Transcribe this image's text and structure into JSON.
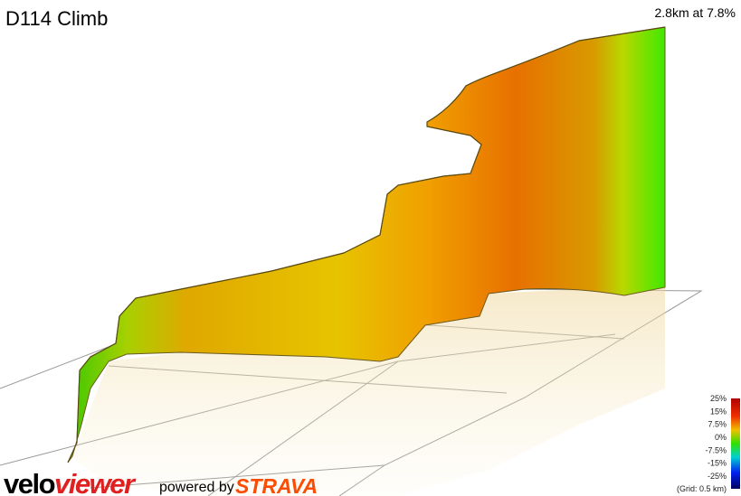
{
  "header": {
    "title": "D114 Climb",
    "summary": "2.8km at 7.8%"
  },
  "legend": {
    "labels": [
      "25%",
      "15%",
      "7.5%",
      "0%",
      "-7.5%",
      "-15%",
      "-25%"
    ],
    "note": "(Grid: 0.5 km)"
  },
  "footer": {
    "logo_part1": "velo",
    "logo_part2": "viewer",
    "powered_by": "powered by",
    "brand": "STRAVA"
  }
}
